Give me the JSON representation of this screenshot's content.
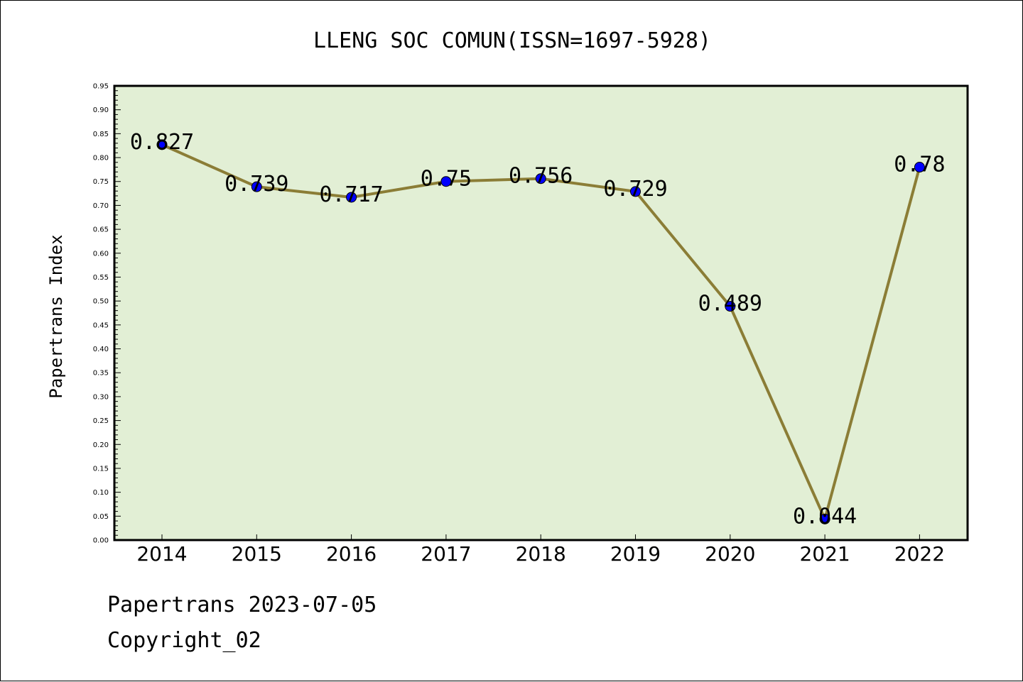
{
  "chart_data": {
    "type": "line",
    "title": "LLENG SOC COMUN(ISSN=1697-5928)",
    "xlabel": "",
    "ylabel": "Papertrans Index",
    "categories": [
      "2014",
      "2015",
      "2016",
      "2017",
      "2018",
      "2019",
      "2020",
      "2021",
      "2022"
    ],
    "values": [
      0.827,
      0.739,
      0.717,
      0.75,
      0.756,
      0.729,
      0.489,
      0.044,
      0.78
    ],
    "data_labels": [
      "0.827",
      "0.739",
      "0.717",
      "0.75",
      "0.756",
      "0.729",
      "0.489",
      "0.044",
      "0.78"
    ],
    "ylim": [
      0,
      0.95
    ],
    "yticks": [
      "0.00",
      "0.05",
      "0.10",
      "0.15",
      "0.20",
      "0.25",
      "0.30",
      "0.35",
      "0.40",
      "0.45",
      "0.50",
      "0.55",
      "0.60",
      "0.65",
      "0.70",
      "0.75",
      "0.80",
      "0.85",
      "0.90",
      "0.95"
    ],
    "grid": false,
    "legend": "none",
    "colors": {
      "plot_background": "#e2efd5",
      "line": "#8b7d36",
      "marker": "#0000ff"
    }
  },
  "footer": {
    "line1": "Papertrans 2023-07-05",
    "line2": "Copyright_02"
  }
}
